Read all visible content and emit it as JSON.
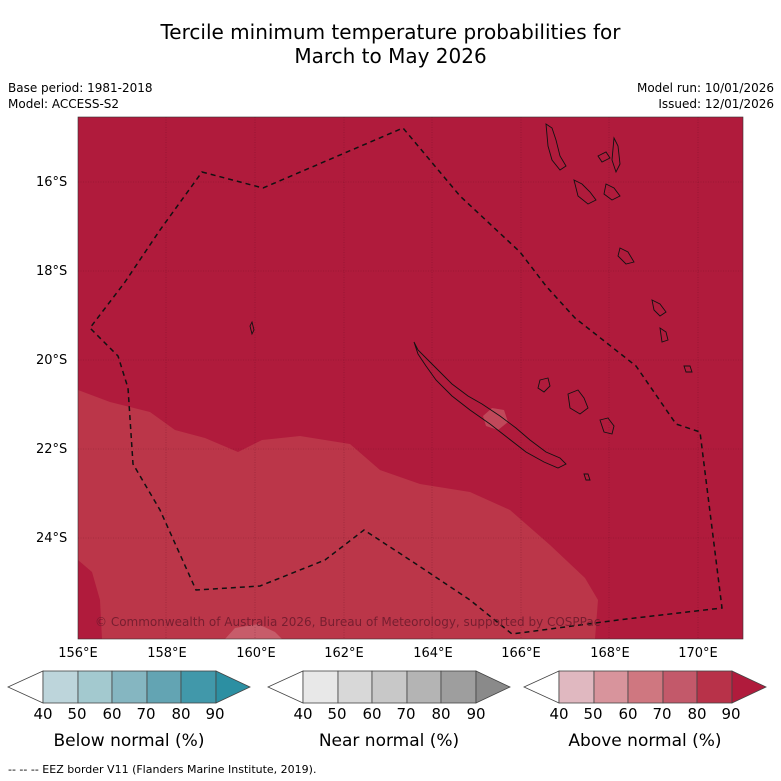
{
  "title_line1": "Tercile minimum temperature probabilities for",
  "title_line2": "March to May 2026",
  "meta_left": {
    "base_period": "Base period: 1981-2018",
    "model": "Model: ACCESS-S2"
  },
  "meta_right": {
    "model_run": "Model run: 10/01/2026",
    "issued": "Issued: 12/01/2026"
  },
  "lat_labels": [
    "16°S",
    "18°S",
    "20°S",
    "22°S",
    "24°S"
  ],
  "lon_labels": [
    "156°E",
    "158°E",
    "160°E",
    "162°E",
    "164°E",
    "166°E",
    "168°E",
    "170°E"
  ],
  "copyright": "© Commonwealth of Australia 2026, Bureau of Meteorology, supported by COSPPac",
  "colorbars": [
    {
      "title": "Below normal (%)",
      "ticks": [
        "40",
        "50",
        "60",
        "70",
        "80",
        "90"
      ],
      "colors": [
        "#ffffff",
        "#bdd5db",
        "#a3c9cf",
        "#85b6c1",
        "#63a4b3",
        "#4198aa",
        "#2c8fa2"
      ]
    },
    {
      "title": "Near normal (%)",
      "ticks": [
        "40",
        "50",
        "60",
        "70",
        "80",
        "90"
      ],
      "colors": [
        "#ffffff",
        "#e8e8e8",
        "#d8d8d8",
        "#c8c8c8",
        "#b4b4b4",
        "#9e9e9e",
        "#8a8a8a"
      ]
    },
    {
      "title": "Above normal (%)",
      "ticks": [
        "40",
        "50",
        "60",
        "70",
        "80",
        "90"
      ],
      "colors": [
        "#ffffff",
        "#e0b8c0",
        "#d8949c",
        "#cf7780",
        "#c3596a",
        "#b83249",
        "#b01b3c"
      ]
    }
  ],
  "footnote": "--  --  -- EEZ border V11 (Flanders Marine Institute, 2019).",
  "colors": {
    "above_90": "#b01b3c",
    "above_80": "#bb3649",
    "above_70": "#c75c6a"
  }
}
